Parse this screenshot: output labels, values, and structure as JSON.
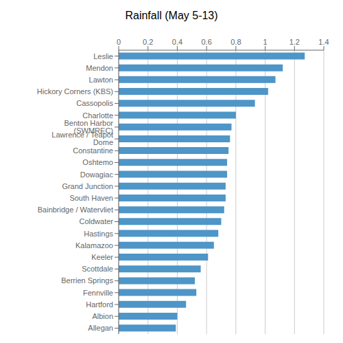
{
  "chart_data": {
    "type": "bar",
    "title": "Rainfall (May 5-13)",
    "orientation": "horizontal",
    "categories": [
      "Leslie",
      "Mendon",
      "Lawton",
      "Hickory Corners (KBS)",
      "Cassopolis",
      "Charlotte",
      "Benton Harbor (SWMREC)",
      "Lawrence / Teapot Dome",
      "Constantine",
      "Oshtemo",
      "Dowagiac",
      "Grand Junction",
      "South Haven",
      "Bainbridge / Watervliet",
      "Coldwater",
      "Hastings",
      "Kalamazoo",
      "Keeler",
      "Scottdale",
      "Berrien Springs",
      "Fennville",
      "Hartford",
      "Albion",
      "Allegan"
    ],
    "values": [
      1.27,
      1.12,
      1.07,
      1.02,
      0.93,
      0.8,
      0.77,
      0.76,
      0.75,
      0.74,
      0.74,
      0.73,
      0.73,
      0.72,
      0.7,
      0.68,
      0.65,
      0.61,
      0.56,
      0.52,
      0.53,
      0.46,
      0.4,
      0.39
    ],
    "color": "#4E95C8",
    "xlim": [
      0,
      1.4
    ],
    "xticks": [
      0,
      0.2,
      0.4,
      0.6,
      0.8,
      1,
      1.2,
      1.4
    ],
    "grid": true
  }
}
